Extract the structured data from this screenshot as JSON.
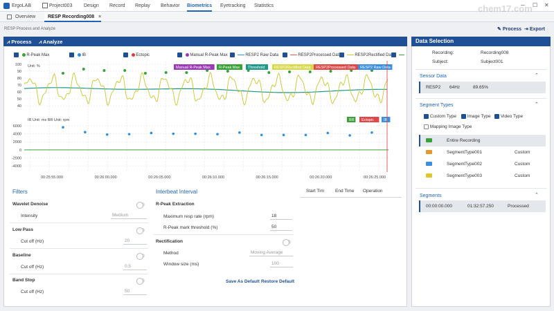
{
  "app": {
    "name": "ErgoLAB",
    "project": "Project003"
  },
  "nav": [
    {
      "id": "design",
      "label": "Design"
    },
    {
      "id": "record",
      "label": "Record"
    },
    {
      "id": "replay",
      "label": "Replay"
    },
    {
      "id": "behavior",
      "label": "Behavior"
    },
    {
      "id": "biometrics",
      "label": "Biometrics"
    },
    {
      "id": "eyetracking",
      "label": "Eyetracking"
    },
    {
      "id": "statistics",
      "label": "Statistics"
    }
  ],
  "tabs": {
    "overview": "Overview",
    "recording": "RESP Recording008",
    "close": "×"
  },
  "breadcrumb": "RESP Process and Analyze",
  "toolbar": {
    "process": "Process",
    "export": "Export"
  },
  "panel_tabs": {
    "process": "Process",
    "analyze": "Analyze"
  },
  "legend": [
    {
      "label": "R-Peak Max",
      "color": "#3aa13a",
      "kind": "dot"
    },
    {
      "label": "IB",
      "color": "#2f8fe0",
      "kind": "dot"
    },
    {
      "label": "Ectopic",
      "color": "#e03a3a",
      "kind": "dot"
    },
    {
      "label": "Manual R-Peak Max",
      "color": "#9a3ab5",
      "kind": "dot"
    },
    {
      "label": "RESP2 Raw Data",
      "color": "#2f8fe0",
      "kind": "line"
    },
    {
      "label": "RESP2Processed Data",
      "color": "#e05a5a",
      "kind": "line"
    },
    {
      "label": "RESP2Rectified Data",
      "color": "#c8c82a",
      "kind": "line"
    }
  ],
  "chart_data": {
    "type": "line",
    "top": {
      "unit_label": "Unit: %",
      "y_ticks": [
        40,
        50,
        60,
        70,
        80,
        90,
        100
      ],
      "ylim": [
        40,
        100
      ],
      "badges": [
        {
          "label": "Manual R-Peak Max",
          "color": "#9a3ab5"
        },
        {
          "label": "R-Peak Max",
          "color": "#3aa13a"
        },
        {
          "label": "Threshold",
          "color": "#1f9a8a"
        },
        {
          "label": "RESP2Rectified Data",
          "color": "#d8d84a"
        },
        {
          "label": "RESP2Processed Data",
          "color": "#e04848"
        },
        {
          "label": "RESP2 Raw Data",
          "color": "#3b8fe0"
        }
      ],
      "peak_x": [
        0.16,
        0.33,
        0.5,
        0.67,
        0.84,
        1.01,
        1.18,
        1.35,
        1.52,
        1.69,
        1.86,
        2.03,
        2.2,
        2.37,
        2.54,
        2.71
      ],
      "peak_y": [
        87,
        93,
        91,
        91,
        87,
        88,
        88,
        91,
        90,
        91,
        88,
        89,
        89,
        90,
        91,
        91
      ]
    },
    "bottom": {
      "unit_label": "IR Unit: ms BR Unit: rpm",
      "y_ticks": [
        -4000,
        -2000,
        0,
        2000,
        4000,
        6000
      ],
      "ylim": [
        -4500,
        6500
      ],
      "badges": [
        {
          "label": "BR",
          "color": "#3aa13a"
        },
        {
          "label": "Ectopic",
          "color": "#e04848"
        },
        {
          "label": "IB",
          "color": "#3b8fe0"
        }
      ],
      "ib_points": [
        5600,
        4400,
        3800,
        3900,
        4200,
        4000,
        4000,
        3900,
        4300,
        3700,
        3700,
        3700,
        4200,
        3600,
        4300
      ],
      "br_value": 0
    },
    "x_tick_labels": [
      "00:25:55.000",
      "00:26:00.000",
      "00:26:05.000",
      "00:26:10.000",
      "00:26:15.000",
      "00:26:20.000",
      "00:26:25.000"
    ]
  },
  "filters": {
    "title": "Filters",
    "wavelet": {
      "label": "Wavelet Denoise",
      "intensity_label": "Intensity",
      "intensity_value": "Medium"
    },
    "lowpass": {
      "label": "Low Pass",
      "cutoff_label": "Cut off (Hz)",
      "cutoff_value": "20"
    },
    "baseline": {
      "label": "Baseline",
      "cutoff_label": "Cut off (Hz)",
      "cutoff_value": "0.5"
    },
    "bandstop": {
      "label": "Band Stop",
      "cutoff_label": "Cut off (Hz)",
      "cutoff_value": "50"
    }
  },
  "interbeat": {
    "title": "Interbeat Interval",
    "rpeak_title": "R-Peak Extraction",
    "max_resp_label": "Maximum resp rate (rpm)",
    "max_resp_value": "18",
    "threshold_label": "R-Peak mark threshold (%)",
    "threshold_value": "50",
    "rect_title": "Rectification",
    "method_label": "Method",
    "method_value": "Moving Average",
    "window_label": "Window size (ms)",
    "window_value": "100",
    "save_default": "Save As Default",
    "restore_default": "Restore Default"
  },
  "event_table": {
    "cols": [
      "Start Tim",
      "End Time",
      "Operation"
    ]
  },
  "data_selection": {
    "title": "Data Selection",
    "recording_label": "Recording:",
    "recording_value": "Recording008",
    "subject_label": "Subject:",
    "subject_value": "Subject001",
    "sensor_title": "Sensor Data",
    "sensor": {
      "name": "RESP2",
      "rate": "64Hz",
      "quality": "89.65%"
    },
    "segment_types_title": "Segment Types",
    "type_options": [
      {
        "label": "Custom Type",
        "checked": true
      },
      {
        "label": "Image Type",
        "checked": true
      },
      {
        "label": "Video Type",
        "checked": true
      },
      {
        "label": "Mapping Image Type",
        "checked": false
      }
    ],
    "segment_types": [
      {
        "name": "Entire Recording",
        "type": "",
        "color": "#3aa13a"
      },
      {
        "name": "SegmentType001",
        "type": "Custom",
        "color": "#e39a2a"
      },
      {
        "name": "SegmentType002",
        "type": "Custom",
        "color": "#3b8fe0"
      },
      {
        "name": "SegmentType003",
        "type": "Custom",
        "color": "#e0c62a"
      }
    ],
    "segments_title": "Segments",
    "segment": {
      "start": "00:00:00.000",
      "end": "01:32:57.250",
      "status": "Processed"
    }
  },
  "watermark": "chem17.com"
}
